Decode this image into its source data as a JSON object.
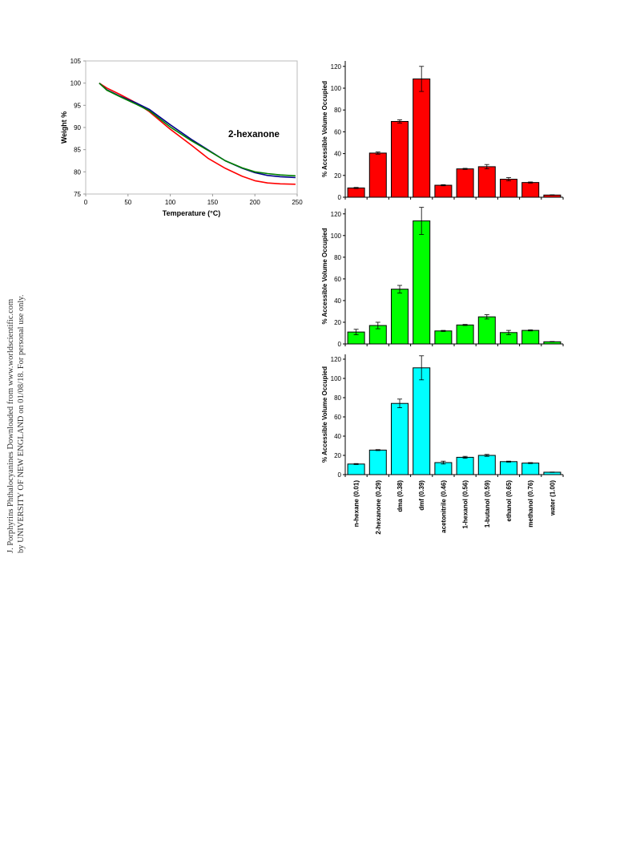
{
  "side_note": {
    "line1": "J. Porphyrins Phthalocyanines Downloaded from www.worldscientific.com",
    "line2": "by UNIVERSITY OF NEW ENGLAND on 01/08/18. For personal use only."
  },
  "chart_data": [
    {
      "type": "line",
      "xlabel": "Temperature (°C)",
      "ylabel": "Weight %",
      "annotation": "2-hexanone",
      "xlim": [
        0,
        250
      ],
      "ylim": [
        75,
        105
      ],
      "xticks": [
        0,
        50,
        100,
        150,
        200,
        250
      ],
      "yticks": [
        75,
        80,
        85,
        90,
        95,
        100,
        105
      ],
      "grid": false,
      "series": [
        {
          "color": "#ff0000",
          "x": [
            16,
            25,
            40,
            60,
            75,
            100,
            125,
            145,
            165,
            185,
            200,
            215,
            230,
            248
          ],
          "y": [
            100,
            98.9,
            97.5,
            95.5,
            93.6,
            89.6,
            86.0,
            83.0,
            80.8,
            79.0,
            78.0,
            77.5,
            77.3,
            77.2
          ]
        },
        {
          "color": "#00008b",
          "x": [
            16,
            25,
            40,
            60,
            75,
            100,
            125,
            145,
            165,
            185,
            200,
            215,
            230,
            248
          ],
          "y": [
            100,
            98.5,
            97.1,
            95.5,
            94.1,
            90.6,
            87.3,
            84.9,
            82.5,
            80.8,
            79.8,
            79.2,
            78.9,
            78.7
          ]
        },
        {
          "color": "#008000",
          "x": [
            16,
            25,
            40,
            60,
            75,
            100,
            125,
            145,
            165,
            185,
            200,
            215,
            230,
            248
          ],
          "y": [
            100,
            98.4,
            97.0,
            95.2,
            93.8,
            90.1,
            87.0,
            84.8,
            82.5,
            80.9,
            80.0,
            79.6,
            79.3,
            79.1
          ]
        }
      ]
    },
    {
      "type": "bar",
      "color": "#ff0000",
      "ylabel": "% Accessible Volume Occupied",
      "ylim": [
        0,
        125
      ],
      "yticks": [
        0,
        20,
        40,
        60,
        80,
        100,
        120
      ],
      "categories": [
        "n-hexane (0.01)",
        "2-hexanone (0.29)",
        "dma (0.38)",
        "dmf (0.39)",
        "acetonitrile (0.46)",
        "1-hexanol (0.56)",
        "1-butanol (0.59)",
        "ethanol (0.65)",
        "methanol (0.76)",
        "water (1.00)"
      ],
      "values": [
        8.5,
        40.5,
        69.5,
        108.5,
        11,
        26,
        28,
        16.5,
        13.5,
        2
      ],
      "errors": [
        0.5,
        1,
        1.5,
        11.5,
        0.5,
        0.5,
        2,
        1.5,
        0.5,
        0.2
      ]
    },
    {
      "type": "bar",
      "color": "#00ff00",
      "ylabel": "% Accessible Volume Occupied",
      "ylim": [
        0,
        125
      ],
      "yticks": [
        0,
        20,
        40,
        60,
        80,
        100,
        120
      ],
      "categories": [
        "n-hexane (0.01)",
        "2-hexanone (0.29)",
        "dma (0.38)",
        "dmf (0.39)",
        "acetonitrile (0.46)",
        "1-hexanol (0.56)",
        "1-butanol (0.59)",
        "ethanol (0.65)",
        "methanol (0.76)",
        "water (1.00)"
      ],
      "values": [
        11,
        17,
        50.5,
        113.5,
        12,
        17.5,
        25,
        10.5,
        12.5,
        2
      ],
      "errors": [
        2.5,
        3,
        3.5,
        12.5,
        0.5,
        0.5,
        2,
        2,
        0.5,
        0.2
      ]
    },
    {
      "type": "bar",
      "color": "#00ffff",
      "ylabel": "% Accessible Volume Occupied",
      "ylim": [
        0,
        125
      ],
      "yticks": [
        0,
        20,
        40,
        60,
        80,
        100,
        120
      ],
      "xtick_rotation": 90,
      "categories": [
        "n-hexane (0.01)",
        "2-hexanone (0.29)",
        "dma (0.38)",
        "dmf (0.39)",
        "acetonitrile (0.46)",
        "1-hexanol (0.56)",
        "1-butanol (0.59)",
        "ethanol (0.65)",
        "methanol (0.76)",
        "water (1.00)"
      ],
      "values": [
        11,
        25.5,
        74,
        111,
        12.5,
        18,
        20,
        13.5,
        12,
        2.5
      ],
      "errors": [
        0.5,
        0.5,
        4.5,
        12.5,
        1.5,
        1,
        1,
        0.5,
        0.5,
        0.2
      ]
    }
  ]
}
